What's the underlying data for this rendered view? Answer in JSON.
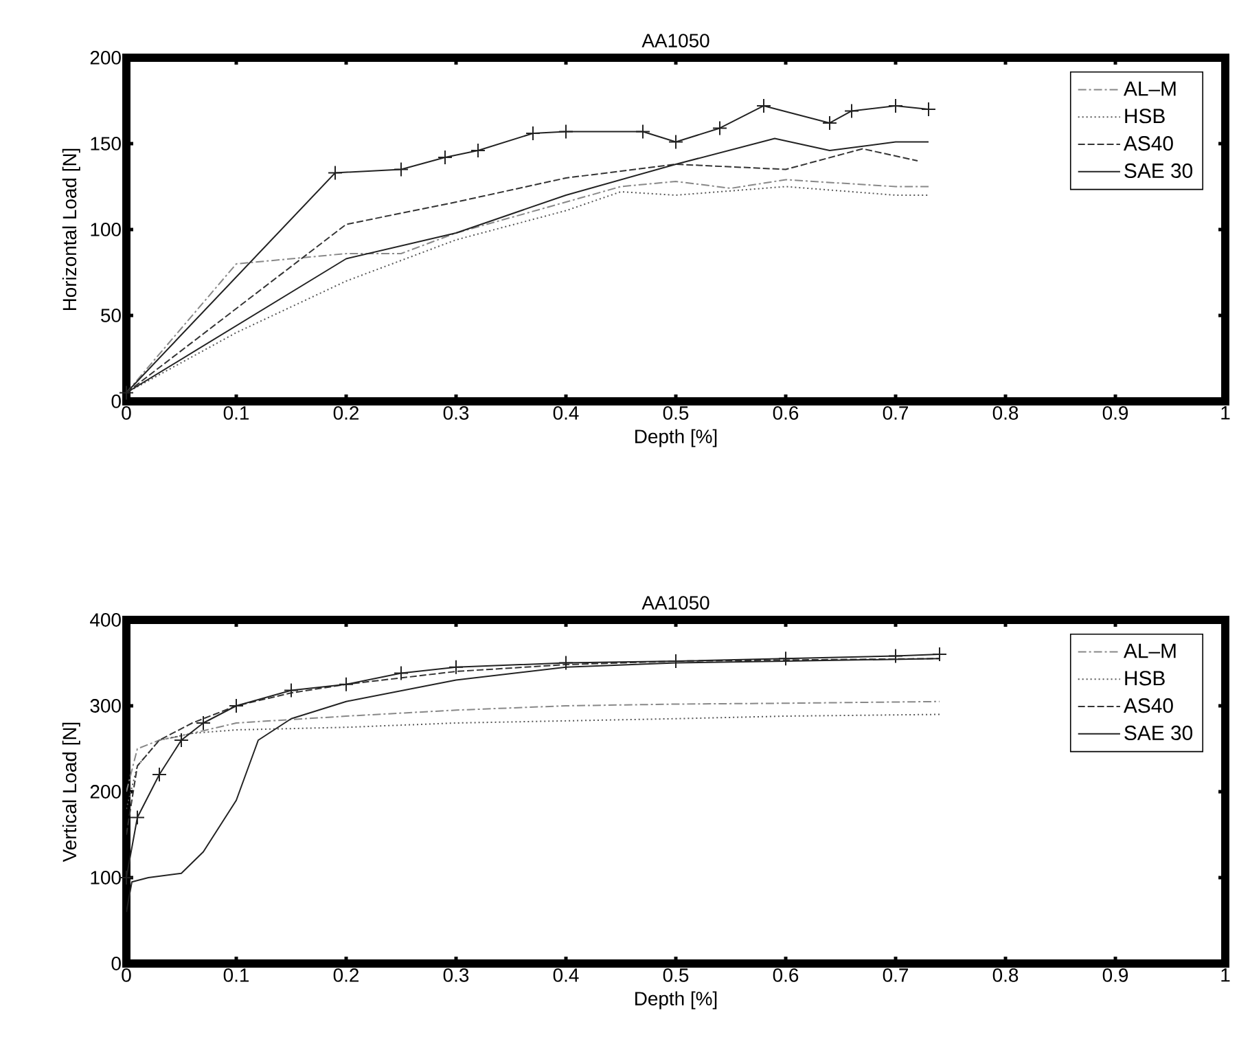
{
  "chart_data": [
    {
      "type": "line",
      "title": "AA1050",
      "xlabel": "Depth [%]",
      "ylabel": "Horizontal Load [N]",
      "xlim": [
        0,
        1
      ],
      "ylim": [
        0,
        200
      ],
      "xticks": [
        0,
        0.1,
        0.2,
        0.3,
        0.4,
        0.5,
        0.6,
        0.7,
        0.8,
        0.9,
        1
      ],
      "yticks": [
        0,
        50,
        100,
        150,
        200
      ],
      "grid": false,
      "legend": "top right",
      "series": [
        {
          "name": "AL–M",
          "color": "#888888",
          "line_style": "dashdot",
          "x": [
            0,
            0.1,
            0.2,
            0.25,
            0.3,
            0.45,
            0.5,
            0.55,
            0.6,
            0.65,
            0.7,
            0.73
          ],
          "values": [
            5,
            80,
            86,
            86,
            98,
            125,
            128,
            124,
            129,
            127,
            125,
            125
          ]
        },
        {
          "name": "HSB",
          "color": "#555555",
          "line_style": "dotted",
          "x": [
            0,
            0.1,
            0.2,
            0.3,
            0.4,
            0.45,
            0.5,
            0.6,
            0.7,
            0.73
          ],
          "values": [
            5,
            40,
            70,
            94,
            111,
            122,
            120,
            125,
            120,
            120
          ]
        },
        {
          "name": "AS40",
          "color": "#333333",
          "line_style": "dashed",
          "x": [
            0,
            0.2,
            0.3,
            0.4,
            0.5,
            0.6,
            0.67,
            0.72
          ],
          "values": [
            5,
            103,
            116,
            130,
            138,
            135,
            147,
            140
          ]
        },
        {
          "color": "#222222",
          "line_style": "solid",
          "marker": "cross",
          "x": [
            0,
            0.19,
            0.25,
            0.29,
            0.32,
            0.37,
            0.4,
            0.47,
            0.5,
            0.54,
            0.58,
            0.64,
            0.66,
            0.7,
            0.73
          ],
          "values": [
            5,
            133,
            135,
            142,
            146,
            156,
            157,
            157,
            151,
            159,
            172,
            162,
            169,
            172,
            170
          ]
        },
        {
          "name": "SAE 30",
          "color": "#222222",
          "line_style": "solid",
          "x": [
            0,
            0.2,
            0.3,
            0.4,
            0.5,
            0.59,
            0.64,
            0.7,
            0.73
          ],
          "values": [
            5,
            83,
            98,
            120,
            138,
            153,
            146,
            151,
            151
          ]
        }
      ]
    },
    {
      "type": "line",
      "title": "AA1050",
      "xlabel": "Depth [%]",
      "ylabel": "Vertical Load [N]",
      "xlim": [
        0,
        1
      ],
      "ylim": [
        0,
        400
      ],
      "xticks": [
        0,
        0.1,
        0.2,
        0.3,
        0.4,
        0.5,
        0.6,
        0.7,
        0.8,
        0.9,
        1
      ],
      "yticks": [
        0,
        100,
        200,
        300,
        400
      ],
      "grid": false,
      "legend": "top right",
      "series": [
        {
          "name": "AL–M",
          "color": "#888888",
          "line_style": "dashdot",
          "x": [
            0,
            0.01,
            0.03,
            0.05,
            0.1,
            0.2,
            0.3,
            0.4,
            0.5,
            0.6,
            0.74
          ],
          "values": [
            200,
            250,
            260,
            265,
            280,
            288,
            295,
            300,
            302,
            303,
            305
          ]
        },
        {
          "name": "HSB",
          "color": "#555555",
          "line_style": "dotted",
          "x": [
            0,
            0.01,
            0.03,
            0.06,
            0.1,
            0.2,
            0.3,
            0.5,
            0.6,
            0.74
          ],
          "values": [
            180,
            230,
            260,
            268,
            272,
            275,
            280,
            285,
            288,
            290
          ]
        },
        {
          "name": "AS40",
          "color": "#333333",
          "line_style": "dashed",
          "x": [
            0,
            0.01,
            0.03,
            0.06,
            0.1,
            0.15,
            0.2,
            0.3,
            0.4,
            0.5,
            0.74
          ],
          "values": [
            150,
            230,
            260,
            280,
            300,
            315,
            325,
            340,
            348,
            352,
            355
          ]
        },
        {
          "color": "#222222",
          "line_style": "solid",
          "marker": "cross",
          "x": [
            0,
            0.01,
            0.03,
            0.05,
            0.07,
            0.1,
            0.15,
            0.2,
            0.25,
            0.3,
            0.4,
            0.5,
            0.6,
            0.7,
            0.74
          ],
          "values": [
            100,
            170,
            220,
            260,
            280,
            300,
            318,
            325,
            338,
            345,
            350,
            352,
            355,
            358,
            360
          ]
        },
        {
          "name": "SAE 30",
          "color": "#222222",
          "line_style": "solid",
          "x": [
            0,
            0.005,
            0.02,
            0.05,
            0.07,
            0.1,
            0.12,
            0.15,
            0.2,
            0.3,
            0.4,
            0.5,
            0.6,
            0.74
          ],
          "values": [
            60,
            95,
            100,
            105,
            130,
            190,
            260,
            285,
            305,
            330,
            345,
            350,
            352,
            355
          ]
        }
      ]
    }
  ]
}
